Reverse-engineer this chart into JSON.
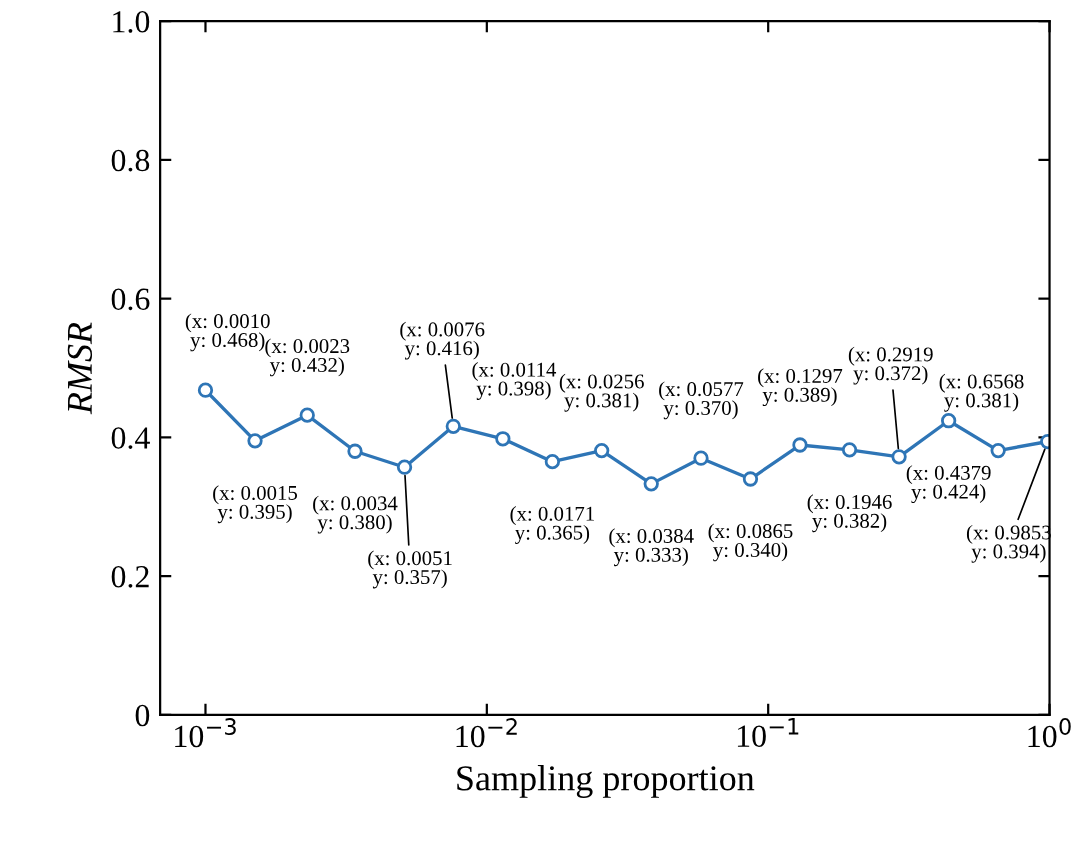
{
  "chart_data": {
    "type": "line",
    "xlabel": "Sampling proportion",
    "ylabel": "RMSR",
    "x": [
      0.001,
      0.0015,
      0.0023,
      0.0034,
      0.0051,
      0.0076,
      0.0114,
      0.0171,
      0.0256,
      0.0384,
      0.0577,
      0.0865,
      0.1297,
      0.1946,
      0.2919,
      0.4379,
      0.6568,
      0.9853
    ],
    "series": [
      {
        "color": "#2e75b6",
        "values": [
          0.468,
          0.395,
          0.432,
          0.38,
          0.357,
          0.416,
          0.398,
          0.365,
          0.381,
          0.333,
          0.37,
          0.34,
          0.389,
          0.382,
          0.372,
          0.424,
          0.381,
          0.394
        ]
      }
    ],
    "log": "x",
    "xlim": [
      0.00069,
      1.0
    ],
    "xticks": [
      {
        "value": 0.001,
        "label": "10$^{−3}$"
      },
      {
        "value": 0.01,
        "label": "10$^{−2}$"
      },
      {
        "value": 0.1,
        "label": "10$^{−1}$"
      },
      {
        "value": 1,
        "label": "10$^{0}$"
      }
    ],
    "ylim": [
      0,
      1.0
    ],
    "yticks": [
      0,
      0.2,
      0.4,
      0.6,
      0.8,
      {
        "value": 1.0,
        "label": "1.0"
      }
    ],
    "marker": "circle",
    "line_style": "solid",
    "grid": false,
    "legend": false,
    "annotations": [
      {
        "text": "(x: 0.0010\ny: 0.468)",
        "x": 0.001,
        "y": 0.468
      },
      {
        "text": "(x: 0.0015\ny: 0.395)",
        "x": 0.0015,
        "y": 0.395
      },
      {
        "text": "(x: 0.0023\ny: 0.432)",
        "x": 0.0023,
        "y": 0.432
      },
      {
        "text": "(x: 0.0034\ny: 0.380)",
        "x": 0.0034,
        "y": 0.38
      },
      {
        "text": "(x: 0.0051\ny: 0.357)",
        "x": 0.0051,
        "y": 0.357
      },
      {
        "text": "(x: 0.0076\ny: 0.416)",
        "x": 0.0076,
        "y": 0.416
      },
      {
        "text": "(x: 0.0114\ny: 0.398)",
        "x": 0.0114,
        "y": 0.398
      },
      {
        "text": "(x: 0.0171\ny: 0.365)",
        "x": 0.0171,
        "y": 0.365
      },
      {
        "text": "(x: 0.0256\ny: 0.381)",
        "x": 0.0256,
        "y": 0.381
      },
      {
        "text": "(x: 0.0384\ny: 0.333)",
        "x": 0.0384,
        "y": 0.333
      },
      {
        "text": "(x: 0.0577\ny: 0.370)",
        "x": 0.0577,
        "y": 0.37
      },
      {
        "text": "(x: 0.0865\ny: 0.340)",
        "x": 0.0865,
        "y": 0.34
      },
      {
        "text": "(x: 0.1297\ny: 0.389)",
        "x": 0.1297,
        "y": 0.389
      },
      {
        "text": "(x: 0.1946\ny: 0.382)",
        "x": 0.1946,
        "y": 0.382
      },
      {
        "text": "(x: 0.2919\ny: 0.372)",
        "x": 0.2919,
        "y": 0.372
      },
      {
        "text": "(x: 0.4379\ny: 0.424)",
        "x": 0.4379,
        "y": 0.424
      },
      {
        "text": "(x: 0.6568\ny: 0.381)",
        "x": 0.6568,
        "y": 0.381
      },
      {
        "text": "(x: 0.9853\ny: 0.394)",
        "x": 0.9853,
        "y": 0.394
      }
    ]
  }
}
